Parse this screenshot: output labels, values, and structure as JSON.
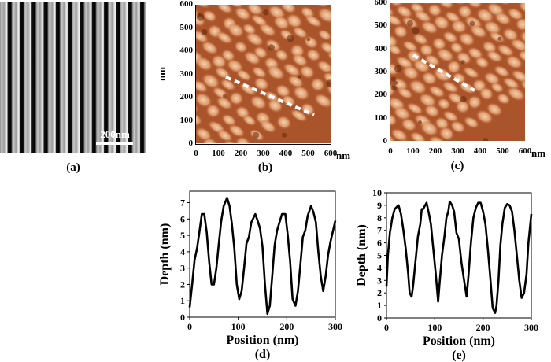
{
  "panels": {
    "a": {
      "label": "(a)",
      "scale_bar": "200nm"
    },
    "b": {
      "label": "(b)",
      "y_unit": "nm",
      "x_unit": "nm",
      "ticks": [
        "0",
        "100",
        "200",
        "300",
        "400",
        "500",
        "600"
      ]
    },
    "c": {
      "label": "(c)",
      "x_unit": "nm",
      "ticks": [
        "0",
        "100",
        "200",
        "300",
        "400",
        "500",
        "600"
      ]
    }
  },
  "colors": {
    "line": "#000000",
    "afm_dark": "#6b2a0e",
    "afm_mid": "#c0693a",
    "afm_light": "#f3d2b0"
  },
  "chart_data": [
    {
      "type": "line",
      "panel_label": "(d)",
      "xlabel": "Position (nm)",
      "ylabel": "Depth (nm)",
      "xlim": [
        0,
        300
      ],
      "ylim": [
        0,
        7.7
      ],
      "xticks": [
        0,
        100,
        200,
        300
      ],
      "yticks": [
        0,
        1,
        2,
        3,
        4,
        5,
        6,
        7
      ],
      "grid": false,
      "x": [
        0,
        5,
        10,
        15,
        20,
        25,
        30,
        35,
        40,
        45,
        50,
        55,
        60,
        65,
        70,
        77,
        82,
        87,
        92,
        97,
        102,
        107,
        112,
        117,
        122,
        127,
        135,
        140,
        145,
        150,
        155,
        160,
        165,
        170,
        175,
        180,
        185,
        190,
        197,
        202,
        207,
        212,
        218,
        223,
        228,
        233,
        238,
        243,
        250,
        255,
        260,
        265,
        270,
        275,
        280,
        285,
        290,
        300
      ],
      "y": [
        0.6,
        2,
        3.5,
        4.2,
        5.2,
        6.3,
        6.3,
        5.2,
        3.4,
        2,
        2,
        3,
        4.5,
        5.9,
        6.8,
        7.3,
        6.8,
        5.7,
        4.2,
        2,
        1.1,
        1.6,
        3,
        4.5,
        4.9,
        5.8,
        6.3,
        5.9,
        5.4,
        4.3,
        2,
        0.2,
        0.7,
        2.5,
        4.4,
        5.3,
        5.8,
        6.3,
        6.3,
        5,
        3.4,
        1.1,
        0.7,
        1.6,
        3.2,
        4.9,
        5.3,
        6.2,
        6.8,
        6.4,
        5.8,
        4,
        2.5,
        1.6,
        2.5,
        3.8,
        4.6,
        5.9
      ]
    },
    {
      "type": "line",
      "panel_label": "(e)",
      "xlabel": "Position (nm)",
      "ylabel": "Depth (nm)",
      "xlim": [
        0,
        300
      ],
      "ylim": [
        0,
        10
      ],
      "xticks": [
        0,
        100,
        200,
        300
      ],
      "yticks": [
        0,
        1,
        2,
        3,
        4,
        5,
        6,
        7,
        8,
        9,
        10
      ],
      "grid": false,
      "x": [
        0,
        3,
        7,
        12,
        17,
        22,
        25,
        30,
        35,
        40,
        45,
        48,
        52,
        55,
        60,
        65,
        70,
        73,
        76,
        80,
        83,
        88,
        92,
        97,
        102,
        107,
        110,
        115,
        120,
        124,
        128,
        131,
        136,
        140,
        145,
        150,
        155,
        160,
        166,
        170,
        175,
        180,
        185,
        190,
        195,
        200,
        205,
        210,
        215,
        220,
        225,
        228,
        232,
        236,
        240,
        245,
        250,
        255,
        260,
        265,
        270,
        275,
        280,
        285,
        290,
        294,
        300
      ],
      "y": [
        2.5,
        5,
        6.8,
        8,
        8.7,
        8.9,
        9,
        8.3,
        7,
        5.5,
        3.5,
        2,
        1.7,
        2.5,
        4.5,
        6.5,
        7.5,
        8.7,
        8.7,
        9,
        9.2,
        8.3,
        7.5,
        5.5,
        3.5,
        1.3,
        2.8,
        5,
        6.5,
        8,
        8.5,
        9.3,
        9,
        8.5,
        6.8,
        6.3,
        4.5,
        3.2,
        1.7,
        3.5,
        6,
        8,
        8.8,
        9.2,
        9.2,
        8.5,
        7.5,
        5.5,
        3.2,
        0.8,
        0.4,
        1,
        3,
        5.8,
        7.5,
        8.8,
        9.1,
        9,
        8.5,
        7,
        5,
        3,
        1.6,
        2,
        3.5,
        6,
        8.3
      ]
    }
  ]
}
